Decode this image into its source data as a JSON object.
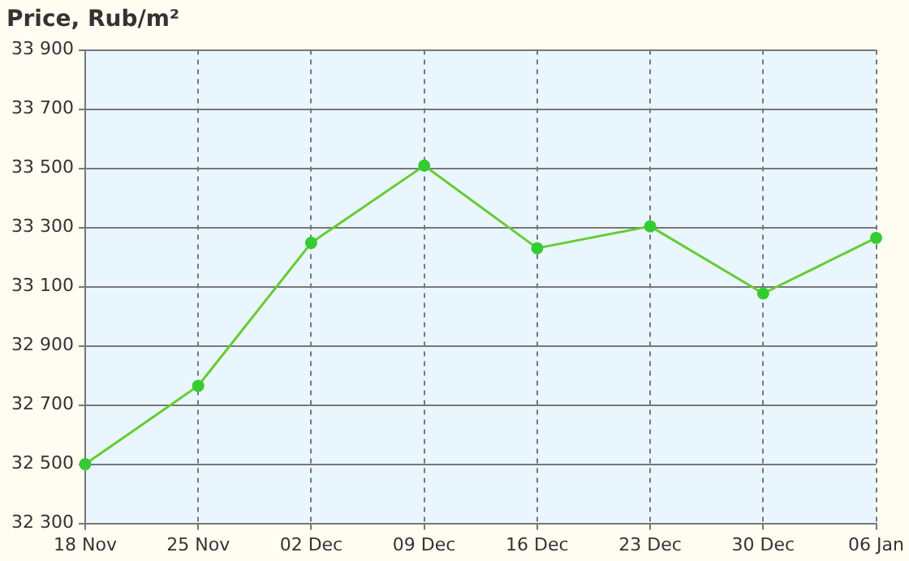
{
  "chart_data": {
    "type": "line",
    "title": "Price, Rub/m²",
    "categories": [
      "18 Nov",
      "25 Nov",
      "02 Dec",
      "09 Dec",
      "16 Dec",
      "23 Dec",
      "30 Dec",
      "06 Jan"
    ],
    "series": [
      {
        "color": "#66cc33",
        "values": [
          32500,
          32765,
          33248,
          33509,
          33230,
          33304,
          33077,
          33265
        ]
      }
    ],
    "ylim": [
      32300,
      33900
    ],
    "yticks": [
      {
        "value": 32300,
        "label": "32 300"
      },
      {
        "value": 32500,
        "label": "32 500"
      },
      {
        "value": 32700,
        "label": "32 700"
      },
      {
        "value": 32900,
        "label": "32 900"
      },
      {
        "value": 33100,
        "label": "33 100"
      },
      {
        "value": 33300,
        "label": "33 300"
      },
      {
        "value": 33500,
        "label": "33 500"
      },
      {
        "value": 33700,
        "label": "33 700"
      },
      {
        "value": 33900,
        "label": "33 900"
      }
    ],
    "grid": true,
    "legend": false,
    "marker": "circle",
    "line_style": "solid"
  }
}
